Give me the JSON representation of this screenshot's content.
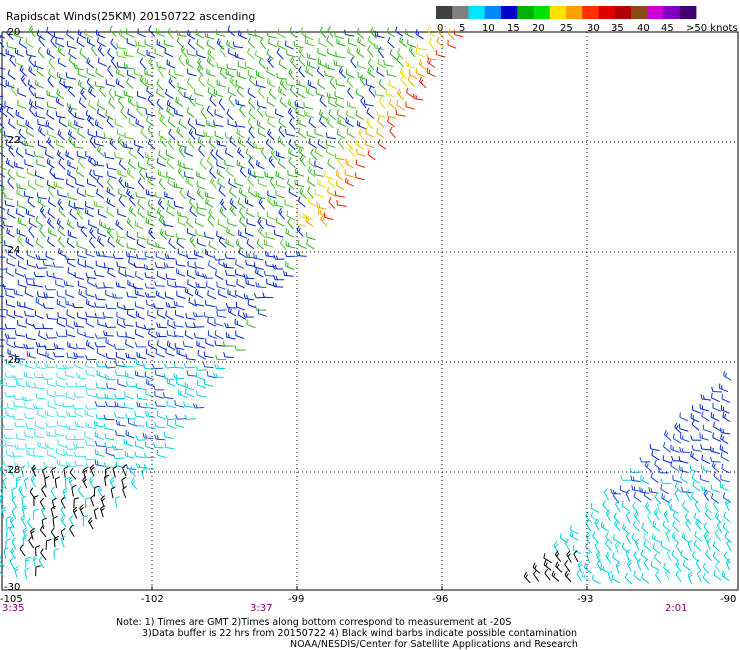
{
  "title": "Rapidscat Winds(25KM) 20150722 ascending",
  "legend": {
    "labels": [
      "0",
      "5",
      "10",
      "15",
      "20",
      "25",
      "30",
      "35",
      "40",
      "45",
      ">50 knots"
    ],
    "colors": [
      "#404040",
      "#808080",
      "#00e5ff",
      "#0088ff",
      "#0000c8",
      "#00b000",
      "#00e000",
      "#ffe000",
      "#ffa000",
      "#ff3000",
      "#e00000",
      "#b40000",
      "#8b4a14",
      "#d000d0",
      "#8000c0",
      "#400070"
    ]
  },
  "lat_labels": [
    "-20",
    "-22",
    "-24",
    "-26",
    "-28",
    "-30"
  ],
  "lon_labels": [
    "-105",
    "-102",
    "-99",
    "-96",
    "-93",
    "-90"
  ],
  "time_labels": [
    "3:35",
    "3:37",
    "2:01"
  ],
  "notes": [
    "Note: 1) Times are GMT 2)Times along bottom correspond to measurement at -20S",
    "3)Data buffer is 22 hrs from 20150722 4) Black wind barbs indicate possible contamination",
    "NOAA/NESDIS/Center for Satellite Applications and Research"
  ],
  "map_data": {
    "lat_range": [
      -30,
      -20
    ],
    "lon_range": [
      -105,
      -90
    ],
    "swaths": [
      {
        "name": "western swath",
        "time": "3:37"
      },
      {
        "name": "eastern swath",
        "time": "2:01"
      }
    ]
  }
}
